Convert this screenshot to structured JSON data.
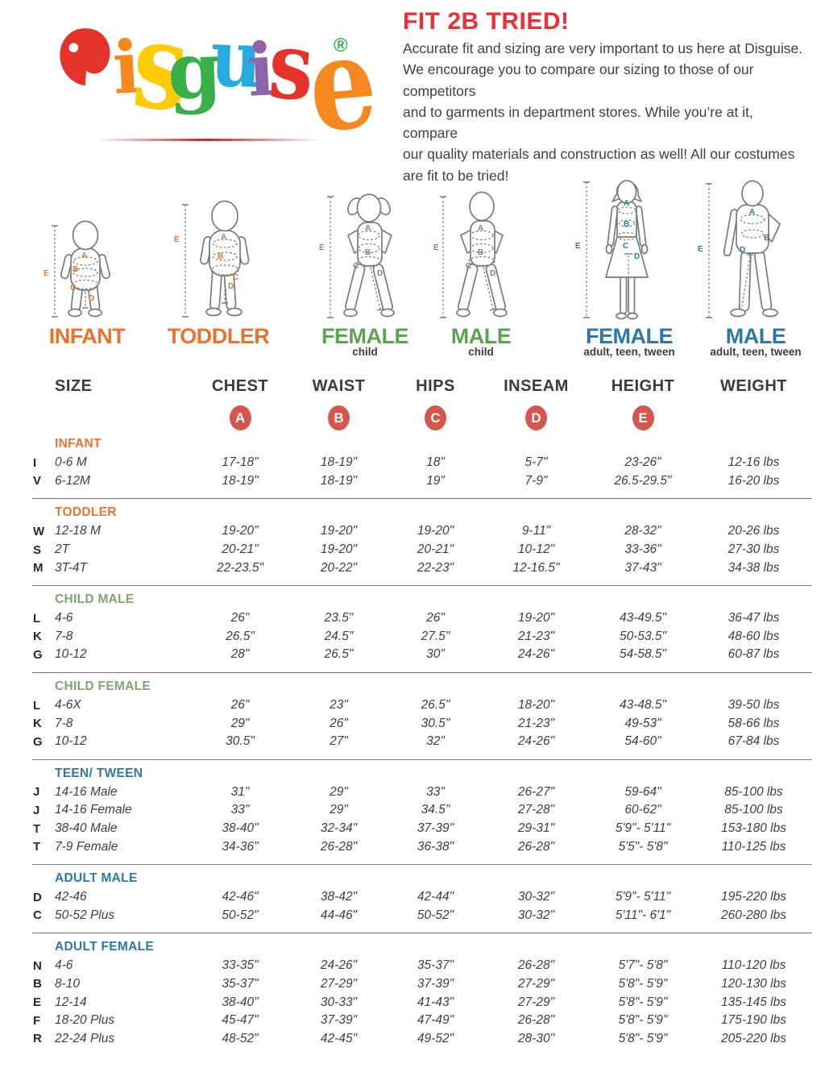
{
  "logo": {
    "brand": "Disguise",
    "letters": [
      "D",
      "i",
      "s",
      "g",
      "u",
      "i",
      "s",
      "e"
    ],
    "registered": "®",
    "letter_colors": [
      "#e5332b",
      "#f6881f",
      "#ffcb05",
      "#3aaf49",
      "#27aae1",
      "#8d64aa",
      "#e5332b",
      "#f6881f"
    ]
  },
  "header": {
    "title": "FIT 2B TRIED!",
    "body_lines": "Accurate fit and sizing are very important to us here at Disguise.\nWe encourage you to compare our sizing to those of our competitors\nand to garments in department stores. While you’re at it, compare\nour quality materials and construction as well! All our costumes\nare fit to be tried!"
  },
  "figures": [
    {
      "name": "INFANT",
      "sub": "",
      "color": "#e8732e",
      "marks": [
        "A",
        "B",
        "C",
        "D",
        "E"
      ]
    },
    {
      "name": "TODDLER",
      "sub": "",
      "color": "#e8732e",
      "marks": [
        "A",
        "B",
        "C",
        "D",
        "E"
      ]
    },
    {
      "name": "FEMALE",
      "sub": "child",
      "color": "#5ea352",
      "marks": [
        "A",
        "B",
        "C",
        "D",
        "E"
      ]
    },
    {
      "name": "MALE",
      "sub": "child",
      "color": "#5ea352",
      "marks": [
        "A",
        "B",
        "C",
        "D",
        "E"
      ]
    },
    {
      "name": "FEMALE",
      "sub": "adult, teen, tween",
      "color": "#2d78a8",
      "marks": [
        "A",
        "B",
        "C",
        "D",
        "E"
      ]
    },
    {
      "name": "MALE",
      "sub": "adult, teen, tween",
      "color": "#2d78a8",
      "marks": [
        "A",
        "B",
        "D",
        "E"
      ]
    }
  ],
  "table": {
    "columns": [
      "SIZE",
      "CHEST",
      "WAIST",
      "HIPS",
      "INSEAM",
      "HEIGHT",
      "WEIGHT"
    ],
    "circles": [
      "A",
      "B",
      "C",
      "D",
      "E"
    ],
    "circle_color": "#d5564c",
    "sections": [
      {
        "title": "INFANT",
        "theme": "st-orange",
        "rows": [
          [
            "I",
            "0-6 M",
            "17-18\"",
            "18-19\"",
            "18\"",
            "5-7\"",
            "23-26\"",
            "12-16 lbs"
          ],
          [
            "V",
            "6-12M",
            "18-19\"",
            "18-19\"",
            "19\"",
            "7-9\"",
            "26.5-29.5\"",
            "16-20 lbs"
          ]
        ]
      },
      {
        "title": "TODDLER",
        "theme": "st-orange",
        "rows": [
          [
            "W",
            "12-18 M",
            "19-20\"",
            "19-20\"",
            "19-20\"",
            "9-11\"",
            "28-32\"",
            "20-26 lbs"
          ],
          [
            "S",
            "2T",
            "20-21\"",
            "19-20\"",
            "20-21\"",
            "10-12\"",
            "33-36\"",
            "27-30 lbs"
          ],
          [
            "M",
            "3T-4T",
            "22-23.5\"",
            "20-22\"",
            "22-23\"",
            "12-16.5\"",
            "37-43\"",
            "34-38 lbs"
          ]
        ]
      },
      {
        "title": "CHILD MALE",
        "theme": "st-green",
        "rows": [
          [
            "L",
            "4-6",
            "26\"",
            "23.5\"",
            "26\"",
            "19-20\"",
            "43-49.5\"",
            "36-47 lbs"
          ],
          [
            "K",
            "7-8",
            "26.5\"",
            "24.5\"",
            "27.5\"",
            "21-23\"",
            "50-53.5\"",
            "48-60 lbs"
          ],
          [
            "G",
            "10-12",
            "28\"",
            "26.5\"",
            "30\"",
            "24-26\"",
            "54-58.5\"",
            "60-87 lbs"
          ]
        ]
      },
      {
        "title": "CHILD FEMALE",
        "theme": "st-green",
        "rows": [
          [
            "L",
            "4-6X",
            "26\"",
            "23\"",
            "26.5\"",
            "18-20\"",
            "43-48.5\"",
            "39-50 lbs"
          ],
          [
            "K",
            "7-8",
            "29\"",
            "26\"",
            "30.5\"",
            "21-23\"",
            "49-53\"",
            "58-66 lbs"
          ],
          [
            "G",
            "10-12",
            "30.5\"",
            "27\"",
            "32\"",
            "24-26\"",
            "54-60\"",
            "67-84 lbs"
          ]
        ]
      },
      {
        "title": "TEEN/ TWEEN",
        "theme": "st-blue",
        "rows": [
          [
            "J",
            "14-16 Male",
            "31\"",
            "29\"",
            "33\"",
            "26-27\"",
            "59-64\"",
            "85-100 lbs"
          ],
          [
            "J",
            "14-16 Female",
            "33\"",
            "29\"",
            "34.5\"",
            "27-28\"",
            "60-62\"",
            "85-100 lbs"
          ],
          [
            "T",
            "38-40 Male",
            "38-40\"",
            "32-34\"",
            "37-39\"",
            "29-31\"",
            "5'9\"- 5'11\"",
            "153-180 lbs"
          ],
          [
            "T",
            "7-9 Female",
            "34-36\"",
            "26-28\"",
            "36-38\"",
            "26-28\"",
            "5'5\"- 5'8\"",
            "110-125 lbs"
          ]
        ]
      },
      {
        "title": "ADULT MALE",
        "theme": "st-blue",
        "rows": [
          [
            "D",
            "42-46",
            "42-46\"",
            "38-42\"",
            "42-44\"",
            "30-32\"",
            "5'9\"- 5'11\"",
            "195-220 lbs"
          ],
          [
            "C",
            "50-52 Plus",
            "50-52\"",
            "44-46\"",
            "50-52\"",
            "30-32\"",
            "5'11\"- 6'1\"",
            "260-280 lbs"
          ]
        ]
      },
      {
        "title": "ADULT FEMALE",
        "theme": "st-blue",
        "rows": [
          [
            "N",
            "4-6",
            "33-35\"",
            "24-26\"",
            "35-37\"",
            "26-28\"",
            "5'7\"- 5'8\"",
            "110-120 lbs"
          ],
          [
            "B",
            "8-10",
            "35-37\"",
            "27-29\"",
            "37-39\"",
            "27-29\"",
            "5'8\"- 5'9\"",
            "120-130 lbs"
          ],
          [
            "E",
            "12-14",
            "38-40\"",
            "30-33\"",
            "41-43\"",
            "27-29\"",
            "5'8\"- 5'9\"",
            "135-145 lbs"
          ],
          [
            "F",
            "18-20 Plus",
            "45-47\"",
            "37-39\"",
            "47-49\"",
            "26-28\"",
            "5'8\"- 5'9\"",
            "175-190 lbs"
          ],
          [
            "R",
            "22-24 Plus",
            "48-52\"",
            "42-45\"",
            "49-52\"",
            "28-30\"",
            "5'8\"- 5'9\"",
            "205-220 lbs"
          ]
        ]
      }
    ]
  }
}
